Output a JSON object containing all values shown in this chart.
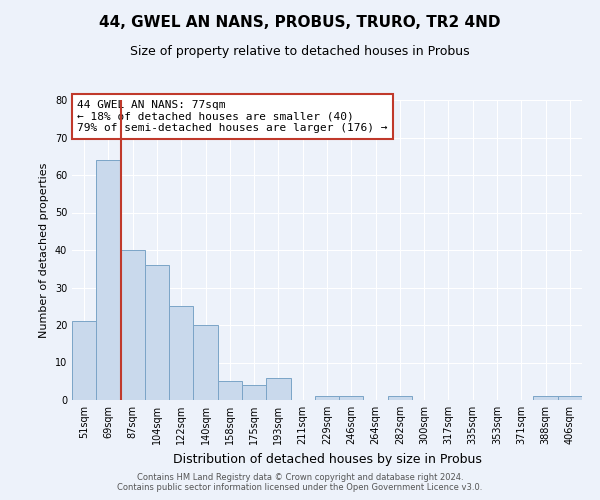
{
  "title": "44, GWEL AN NANS, PROBUS, TRURO, TR2 4ND",
  "subtitle": "Size of property relative to detached houses in Probus",
  "xlabel": "Distribution of detached houses by size in Probus",
  "ylabel": "Number of detached properties",
  "bar_labels": [
    "51sqm",
    "69sqm",
    "87sqm",
    "104sqm",
    "122sqm",
    "140sqm",
    "158sqm",
    "175sqm",
    "193sqm",
    "211sqm",
    "229sqm",
    "246sqm",
    "264sqm",
    "282sqm",
    "300sqm",
    "317sqm",
    "335sqm",
    "353sqm",
    "371sqm",
    "388sqm",
    "406sqm"
  ],
  "bar_values": [
    21,
    64,
    40,
    36,
    25,
    20,
    5,
    4,
    6,
    0,
    1,
    1,
    0,
    1,
    0,
    0,
    0,
    0,
    0,
    1,
    1
  ],
  "bar_color": "#c9d9ec",
  "bar_edge_color": "#7ba4c7",
  "ylim": [
    0,
    80
  ],
  "yticks": [
    0,
    10,
    20,
    30,
    40,
    50,
    60,
    70,
    80
  ],
  "vline_color": "#c0392b",
  "vline_x_index": 1.5,
  "annotation_title": "44 GWEL AN NANS: 77sqm",
  "annotation_line1": "← 18% of detached houses are smaller (40)",
  "annotation_line2": "79% of semi-detached houses are larger (176) →",
  "annotation_box_facecolor": "#ffffff",
  "annotation_box_edgecolor": "#c0392b",
  "bg_color": "#edf2fa",
  "grid_color": "#ffffff",
  "footer1": "Contains HM Land Registry data © Crown copyright and database right 2024.",
  "footer2": "Contains public sector information licensed under the Open Government Licence v3.0.",
  "title_fontsize": 11,
  "subtitle_fontsize": 9,
  "ylabel_fontsize": 8,
  "xlabel_fontsize": 9,
  "tick_fontsize": 7,
  "annotation_fontsize": 8,
  "footer_fontsize": 6
}
